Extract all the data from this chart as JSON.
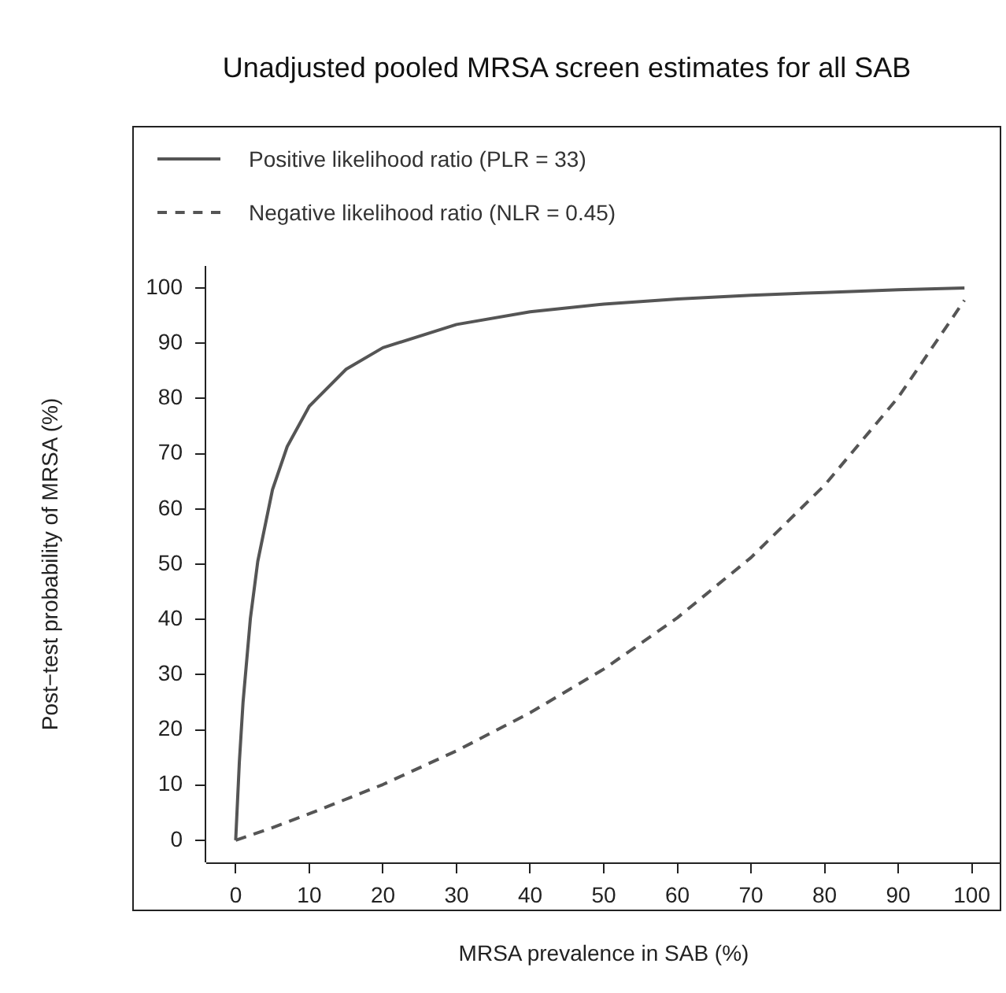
{
  "chart_data": {
    "type": "line",
    "title": "Unadjusted pooled MRSA screen estimates for all SAB",
    "xlabel": "MRSA prevalence in SAB (%)",
    "ylabel": "Post−test probability of MRSA (%)",
    "x": [
      0,
      0.5,
      1,
      2,
      3,
      5,
      7,
      10,
      15,
      20,
      30,
      40,
      50,
      60,
      70,
      80,
      90,
      99
    ],
    "series": [
      {
        "name": "Positive likelihood ratio (PLR = 33)",
        "color": "#555555",
        "line_style": "solid",
        "values": [
          0,
          14.2,
          25.0,
          40.2,
          50.5,
          63.5,
          71.3,
          78.6,
          85.3,
          89.2,
          93.4,
          95.7,
          97.1,
          98.0,
          98.7,
          99.2,
          99.7,
          100
        ]
      },
      {
        "name": "Negative likelihood ratio (NLR = 0.45)",
        "color": "#555555",
        "line_style": "dashed",
        "x": [
          0,
          5,
          10,
          20,
          30,
          40,
          50,
          60,
          70,
          80,
          90,
          99
        ],
        "values": [
          0,
          2.3,
          4.8,
          10.1,
          16.2,
          23.1,
          31.0,
          40.3,
          51.2,
          64.3,
          80.2,
          97.8
        ]
      }
    ],
    "xlim": [
      -4,
      104
    ],
    "ylim": [
      -4,
      104
    ],
    "xticks": [
      0,
      10,
      20,
      30,
      40,
      50,
      60,
      70,
      80,
      90,
      100
    ],
    "yticks": [
      0,
      10,
      20,
      30,
      40,
      50,
      60,
      70,
      80,
      90,
      100
    ],
    "grid": false,
    "legend": "top left",
    "marker": "none"
  }
}
